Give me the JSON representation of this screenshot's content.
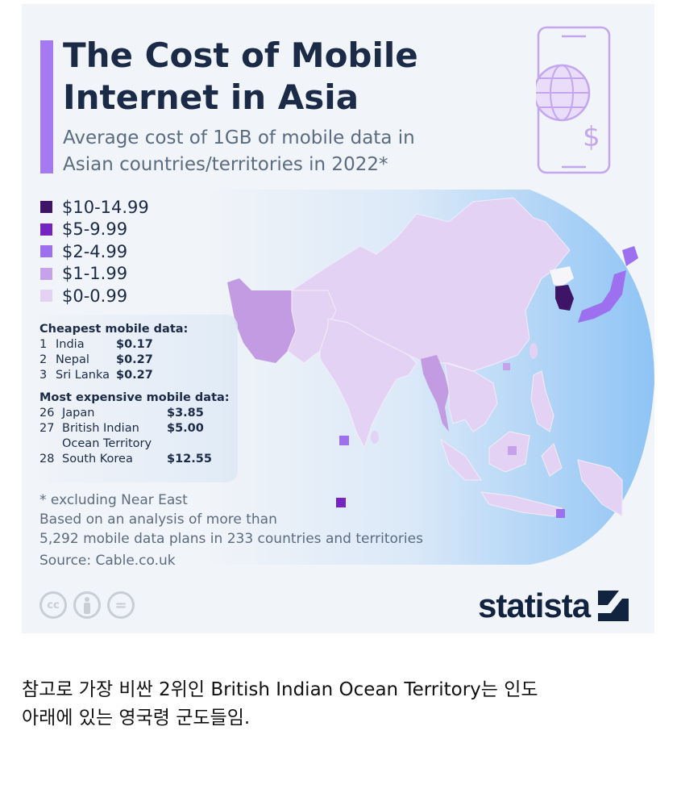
{
  "title": "The Cost of Mobile Internet in Asia",
  "title_lines": [
    "The Cost of Mobile",
    "Internet in Asia"
  ],
  "subtitle_lines": [
    "Average cost of 1GB of mobile data in",
    "Asian countries/territories in 2022*"
  ],
  "legend": [
    {
      "label": "$10-14.99",
      "color": "#3d1466"
    },
    {
      "label": "$5-9.99",
      "color": "#7424c2"
    },
    {
      "label": "$2-4.99",
      "color": "#9d70f0"
    },
    {
      "label": "$1-1.99",
      "color": "#c5a2ea"
    },
    {
      "label": "$0-0.99",
      "color": "#e3d2f3"
    }
  ],
  "cheapest": {
    "heading": "Cheapest mobile data:",
    "rows": [
      {
        "rank": "1",
        "name": "India",
        "value": "$0.17"
      },
      {
        "rank": "2",
        "name": "Nepal",
        "value": "$0.27"
      },
      {
        "rank": "3",
        "name": "Sri Lanka",
        "value": "$0.27"
      }
    ]
  },
  "most_expensive": {
    "heading": "Most expensive mobile data:",
    "rows": [
      {
        "rank": "26",
        "name": "Japan",
        "value": "$3.85"
      },
      {
        "rank": "27",
        "name": "British Indian Ocean Territory",
        "name_lines": [
          "British Indian",
          "Ocean Territory"
        ],
        "value": "$5.00"
      },
      {
        "rank": "28",
        "name": "South Korea",
        "value": "$12.55"
      }
    ]
  },
  "notes": [
    "* excluding Near East",
    "Based on an analysis of more than",
    "5,292 mobile data plans in 233 countries and territories",
    "Source: Cable.co.uk"
  ],
  "license_icons": [
    "cc-icon",
    "attribution-icon",
    "no-derivatives-icon"
  ],
  "license_text": {
    "cc": "cc",
    "nd": "="
  },
  "brand": "statista",
  "caption_lines": [
    "참고로 가장 비싼 2위인 British Indian Ocean Territory는 인도",
    "아래에 있는 영국령 군도들임."
  ],
  "colors": {
    "accent": "#a57af0",
    "title": "#1b2a47",
    "ocean": "#8fc4f5"
  }
}
